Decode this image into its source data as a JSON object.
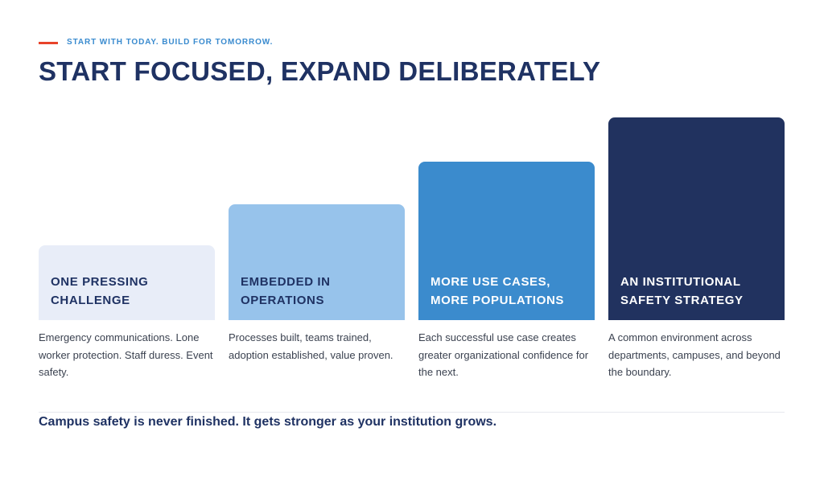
{
  "eyebrow": "START WITH TODAY. BUILD FOR TOMORROW.",
  "title": "START FOCUSED, EXPAND DELIBERATELY",
  "steps": [
    {
      "label": "ONE PRESSING\nCHALLENGE",
      "description": "Emergency communications. Lone worker protection. Staff duress. Event safety.",
      "color": "#e8edf8",
      "text_color": "#1f3263"
    },
    {
      "label": "EMBEDDED IN\nOPERATIONS",
      "description": "Processes built, teams trained, adoption established, value proven.",
      "color": "#97c3eb",
      "text_color": "#1f3263"
    },
    {
      "label": "MORE USE CASES,\nMORE POPULATIONS",
      "description": "Each successful use case creates greater organizational confidence for the next.",
      "color": "#3b8bcd",
      "text_color": "#ffffff"
    },
    {
      "label": "AN INSTITUTIONAL\nSAFETY STRATEGY",
      "description": "A common environment across departments, campuses, and beyond the boundary.",
      "color": "#21325f",
      "text_color": "#ffffff"
    }
  ],
  "footer": "Campus safety is never finished. It gets stronger as your institution grows.",
  "colors": {
    "accent": "#e8432a",
    "eyebrow": "#3a8bcf",
    "heading": "#1f3263"
  }
}
